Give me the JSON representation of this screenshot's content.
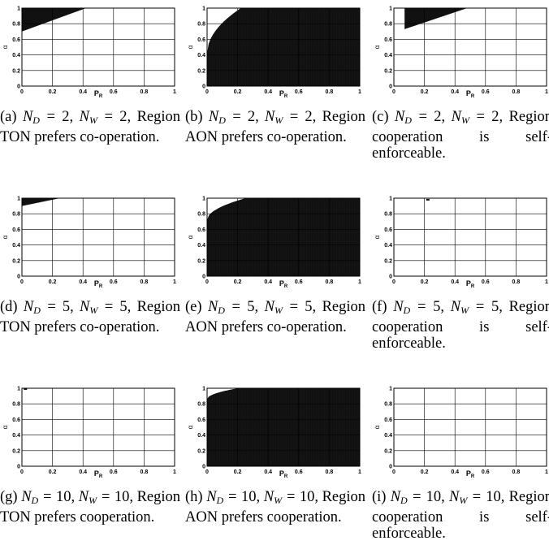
{
  "figure": {
    "x_axis_label": "P",
    "x_axis_label_sub": "R",
    "y_axis_label": "α",
    "x_ticks": [
      "0",
      "0.2",
      "0.4",
      "0.6",
      "0.8",
      "1"
    ],
    "y_ticks": [
      "0",
      "0.2",
      "0.4",
      "0.6",
      "0.8",
      "1"
    ],
    "fill_color": "#111111",
    "panels": [
      {
        "id": "a",
        "tag": "(a)",
        "nd": "2",
        "nw": "2",
        "text": "Region TON prefers co-operation.",
        "region": {
          "type": "wedge",
          "x_start": 0.0,
          "y_start": 0.7,
          "x_end": 0.42,
          "y_end": 1.0
        }
      },
      {
        "id": "b",
        "tag": "(b)",
        "nd": "2",
        "nw": "2",
        "text": "Region AON prefers co-operation.",
        "region": {
          "type": "curve",
          "x_min": 0.0,
          "y_min_at_x0": 0.42,
          "knee_x": 0.22
        }
      },
      {
        "id": "c",
        "tag": "(c)",
        "nd": "2",
        "nw": "2",
        "text": "Region cooperation is self-enforceable.",
        "region": {
          "type": "wedge",
          "x_start": 0.07,
          "y_start": 0.73,
          "x_end": 0.48,
          "y_end": 1.0
        }
      },
      {
        "id": "d",
        "tag": "(d)",
        "nd": "5",
        "nw": "5",
        "text": "Region TON prefers co-operation.",
        "region": {
          "type": "wedge",
          "x_start": 0.0,
          "y_start": 0.9,
          "x_end": 0.25,
          "y_end": 1.0
        }
      },
      {
        "id": "e",
        "tag": "(e)",
        "nd": "5",
        "nw": "5",
        "text": "Region AON prefers co-operation.",
        "region": {
          "type": "curve",
          "x_min": 0.0,
          "y_min_at_x0": 0.72,
          "knee_x": 0.25
        }
      },
      {
        "id": "f",
        "tag": "(f)",
        "nd": "5",
        "nw": "5",
        "text": "Region cooperation is self-enforceable.",
        "region": {
          "type": "dot",
          "x": 0.22,
          "y": 0.98
        }
      },
      {
        "id": "g",
        "tag": "(g)",
        "nd": "10",
        "nw": "10",
        "text": "Region TON prefers cooperation.",
        "region": {
          "type": "dot",
          "x": 0.02,
          "y": 0.99
        }
      },
      {
        "id": "h",
        "tag": "(h)",
        "nd": "10",
        "nw": "10",
        "text": "Region AON prefers cooperation.",
        "region": {
          "type": "curve",
          "x_min": 0.0,
          "y_min_at_x0": 0.86,
          "knee_x": 0.2
        }
      },
      {
        "id": "i",
        "tag": "(i)",
        "nd": "10",
        "nw": "10",
        "text": "Region cooperation is self-enforceable.",
        "region": {
          "type": "none"
        }
      }
    ]
  }
}
